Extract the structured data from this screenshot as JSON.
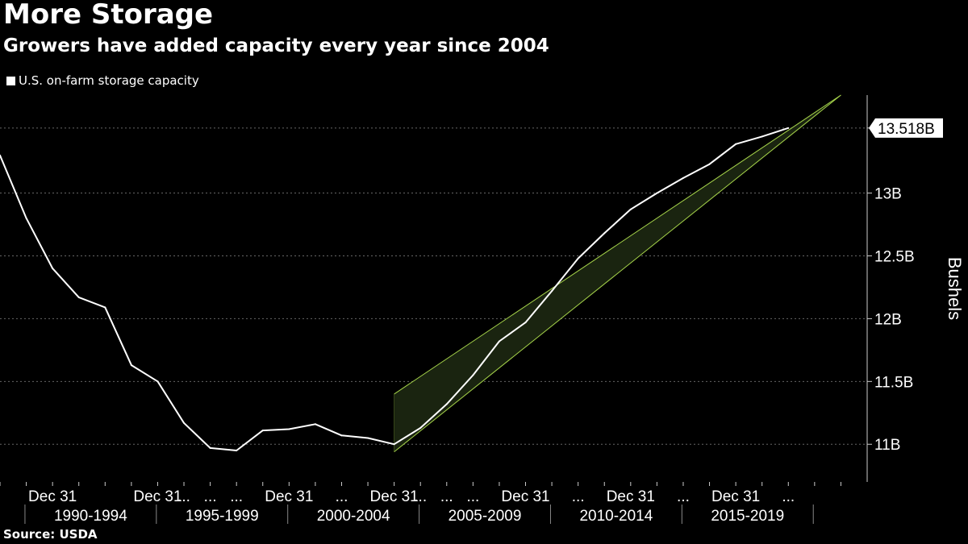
{
  "title": "More Storage",
  "subtitle": "Growers have added capacity every year since 2004",
  "source": "Source: USDA",
  "colors": {
    "background": "#000000",
    "line": "#ffffff",
    "channel_fill": "#1a2410",
    "channel_edge": "#a6d44a",
    "grid": "#666666"
  },
  "chart_data": {
    "type": "line",
    "series": [
      {
        "name": "U.S. on-farm storage capacity",
        "x": [
          1989,
          1990,
          1991,
          1992,
          1993,
          1994,
          1995,
          1996,
          1997,
          1998,
          1999,
          2000,
          2001,
          2002,
          2003,
          2004,
          2005,
          2006,
          2007,
          2008,
          2009,
          2010,
          2011,
          2012,
          2013,
          2014,
          2015,
          2016,
          2017,
          2018,
          2019
        ],
        "values": [
          13.3,
          12.8,
          12.4,
          12.17,
          12.09,
          11.63,
          11.5,
          11.17,
          10.97,
          10.95,
          11.11,
          11.12,
          11.16,
          11.07,
          11.05,
          11.0,
          11.13,
          11.32,
          11.55,
          11.82,
          11.97,
          12.22,
          12.48,
          12.68,
          12.87,
          13.0,
          13.12,
          13.23,
          13.39,
          13.45,
          13.518
        ]
      }
    ],
    "channel": {
      "upper": [
        [
          2004,
          11.4
        ],
        [
          2021,
          13.78
        ]
      ],
      "lower": [
        [
          2004,
          10.94
        ],
        [
          2021,
          13.78
        ]
      ]
    },
    "last_value_label": "13.518B",
    "ylabel": "Bushels",
    "ylim": [
      10.7,
      13.78
    ],
    "yticks": [
      {
        "value": 11,
        "label": "11B"
      },
      {
        "value": 11.5,
        "label": "11.5B"
      },
      {
        "value": 12,
        "label": "12B"
      },
      {
        "value": 12.5,
        "label": "12.5B"
      },
      {
        "value": 13,
        "label": "13B"
      },
      {
        "value": 13.518,
        "label": ""
      }
    ],
    "xlim": [
      1989,
      2022
    ],
    "xtick_labels": [
      {
        "x": 1991,
        "label": "Dec 31"
      },
      {
        "x": 1995,
        "label": "Dec 31"
      },
      {
        "x": 1996,
        "label": "..."
      },
      {
        "x": 1997,
        "label": "..."
      },
      {
        "x": 1998,
        "label": "..."
      },
      {
        "x": 2000,
        "label": "Dec 31"
      },
      {
        "x": 2002,
        "label": "..."
      },
      {
        "x": 2004,
        "label": "Dec 31"
      },
      {
        "x": 2005,
        "label": "..."
      },
      {
        "x": 2006,
        "label": "..."
      },
      {
        "x": 2007,
        "label": "..."
      },
      {
        "x": 2009,
        "label": "Dec 31"
      },
      {
        "x": 2011,
        "label": "..."
      },
      {
        "x": 2013,
        "label": "Dec 31"
      },
      {
        "x": 2015,
        "label": "..."
      },
      {
        "x": 2017,
        "label": "Dec 31"
      },
      {
        "x": 2019,
        "label": "..."
      }
    ],
    "period_labels": [
      {
        "label": "1990-1994",
        "from": 1990,
        "to": 1994
      },
      {
        "label": "1995-1999",
        "from": 1995,
        "to": 1999
      },
      {
        "label": "2000-2004",
        "from": 2000,
        "to": 2004
      },
      {
        "label": "2005-2009",
        "from": 2005,
        "to": 2009
      },
      {
        "label": "2010-2014",
        "from": 2010,
        "to": 2014
      },
      {
        "label": "2015-2019",
        "from": 2015,
        "to": 2019
      }
    ],
    "grid": true,
    "legend_position": "top-left"
  }
}
